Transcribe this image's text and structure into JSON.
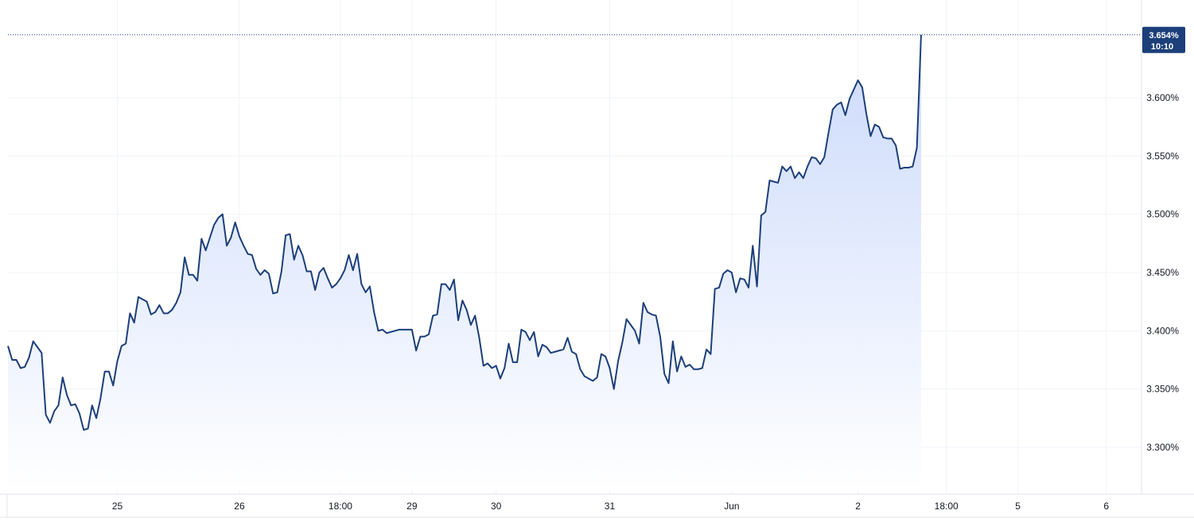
{
  "colors": {
    "line": "#1c3f7a",
    "area_top": "#c9d8fb",
    "area_bottom": "#ffffff",
    "grid": "#f0f3fa",
    "border": "#e0e3eb",
    "badge_bg": "#1c3f7a",
    "badge_text": "#ffffff",
    "label": "#131722"
  },
  "chart_data": {
    "type": "area",
    "title": "",
    "xlabel": "",
    "ylabel": "",
    "grid": true,
    "y_unit": "%",
    "ylim": [
      3.26,
      3.68
    ],
    "yticks": [
      3.3,
      3.35,
      3.4,
      3.45,
      3.5,
      3.55,
      3.6
    ],
    "ytick_labels": [
      "3.300%",
      "3.350%",
      "3.400%",
      "3.450%",
      "3.500%",
      "3.550%",
      "3.600%"
    ],
    "x_ticks": [
      {
        "index": 26,
        "label": "25"
      },
      {
        "index": 55,
        "label": "26"
      },
      {
        "index": 79,
        "label": "18:00"
      },
      {
        "index": 96,
        "label": "29"
      },
      {
        "index": 116,
        "label": "30"
      },
      {
        "index": 143,
        "label": "31"
      },
      {
        "index": 172,
        "label": "Jun"
      },
      {
        "index": 202,
        "label": "2"
      },
      {
        "index": 223,
        "label": "18:00"
      },
      {
        "index": 240,
        "label": "5"
      },
      {
        "index": 261,
        "label": "6"
      }
    ],
    "last_value_label": "3.654%",
    "last_time_label": "10:10",
    "series": [
      {
        "values": [
          3.387,
          3.375,
          3.375,
          3.368,
          3.369,
          3.377,
          3.391,
          3.386,
          3.381,
          3.328,
          3.321,
          3.331,
          3.336,
          3.36,
          3.345,
          3.336,
          3.337,
          3.329,
          3.315,
          3.316,
          3.336,
          3.325,
          3.342,
          3.365,
          3.365,
          3.353,
          3.374,
          3.387,
          3.389,
          3.415,
          3.407,
          3.429,
          3.427,
          3.425,
          3.414,
          3.416,
          3.422,
          3.415,
          3.415,
          3.418,
          3.424,
          3.433,
          3.463,
          3.448,
          3.448,
          3.443,
          3.479,
          3.469,
          3.48,
          3.491,
          3.497,
          3.5,
          3.473,
          3.48,
          3.493,
          3.481,
          3.473,
          3.466,
          3.465,
          3.453,
          3.448,
          3.452,
          3.449,
          3.432,
          3.433,
          3.451,
          3.482,
          3.483,
          3.461,
          3.473,
          3.465,
          3.451,
          3.451,
          3.435,
          3.45,
          3.454,
          3.445,
          3.437,
          3.44,
          3.445,
          3.452,
          3.465,
          3.452,
          3.466,
          3.44,
          3.433,
          3.438,
          3.416,
          3.4,
          3.401,
          3.398,
          3.399,
          3.4,
          3.401,
          3.401,
          3.401,
          3.401,
          3.383,
          3.395,
          3.395,
          3.397,
          3.413,
          3.414,
          3.44,
          3.44,
          3.435,
          3.444,
          3.409,
          3.426,
          3.418,
          3.405,
          3.413,
          3.394,
          3.37,
          3.372,
          3.368,
          3.37,
          3.359,
          3.368,
          3.389,
          3.373,
          3.373,
          3.401,
          3.399,
          3.392,
          3.399,
          3.378,
          3.388,
          3.386,
          3.381,
          3.382,
          3.383,
          3.384,
          3.394,
          3.382,
          3.38,
          3.367,
          3.361,
          3.359,
          3.357,
          3.36,
          3.38,
          3.378,
          3.368,
          3.35,
          3.374,
          3.39,
          3.41,
          3.405,
          3.4,
          3.389,
          3.424,
          3.416,
          3.414,
          3.413,
          3.395,
          3.363,
          3.355,
          3.391,
          3.365,
          3.378,
          3.369,
          3.371,
          3.367,
          3.367,
          3.368,
          3.384,
          3.38,
          3.436,
          3.437,
          3.449,
          3.452,
          3.45,
          3.433,
          3.445,
          3.444,
          3.437,
          3.473,
          3.438,
          3.499,
          3.502,
          3.529,
          3.528,
          3.527,
          3.541,
          3.537,
          3.541,
          3.531,
          3.536,
          3.531,
          3.541,
          3.549,
          3.548,
          3.543,
          3.549,
          3.57,
          3.59,
          3.594,
          3.596,
          3.585,
          3.599,
          3.607,
          3.615,
          3.609,
          3.586,
          3.567,
          3.577,
          3.575,
          3.566,
          3.565,
          3.565,
          3.559,
          3.539,
          3.54,
          3.54,
          3.541,
          3.557,
          3.654
        ]
      }
    ]
  }
}
